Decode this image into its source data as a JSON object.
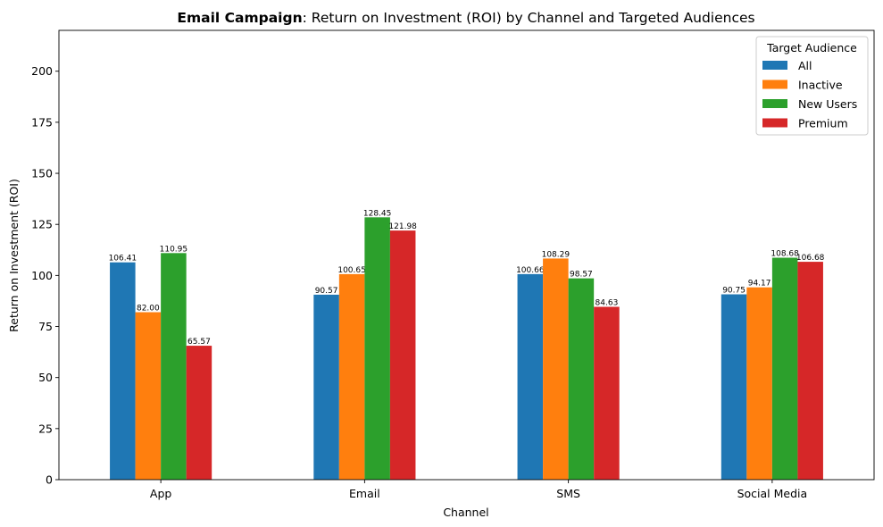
{
  "chart_data": {
    "type": "bar",
    "title_bold": "Email Campaign",
    "title_rest": ": Return on Investment (ROI) by Channel and Targeted Audiences",
    "xlabel": "Channel",
    "ylabel": "Return on Investment (ROI)",
    "ylim": [
      0,
      220
    ],
    "yticks": [
      0,
      25,
      50,
      75,
      100,
      125,
      150,
      175,
      200
    ],
    "grid": false,
    "legend": {
      "title": "Target Audience",
      "placement": "top-right"
    },
    "categories": [
      "App",
      "Email",
      "SMS",
      "Social Media"
    ],
    "series": [
      {
        "name": "All",
        "color": "#1f77b4",
        "values": [
          106.41,
          90.57,
          100.66,
          90.75
        ],
        "labels": [
          "106.41",
          "90.57",
          "100.66",
          "90.75"
        ]
      },
      {
        "name": "Inactive",
        "color": "#ff7f0e",
        "values": [
          82.0,
          100.65,
          108.29,
          94.17
        ],
        "labels": [
          "82.00",
          "100.65",
          "108.29",
          "94.17"
        ]
      },
      {
        "name": "New Users",
        "color": "#2ca02c",
        "values": [
          110.95,
          128.45,
          98.57,
          108.68
        ],
        "labels": [
          "110.95",
          "128.45",
          "98.57",
          "108.68"
        ]
      },
      {
        "name": "Premium",
        "color": "#d62728",
        "values": [
          65.57,
          121.98,
          84.63,
          106.68
        ],
        "labels": [
          "65.57",
          "121.98",
          "84.63",
          "106.68"
        ]
      }
    ]
  }
}
